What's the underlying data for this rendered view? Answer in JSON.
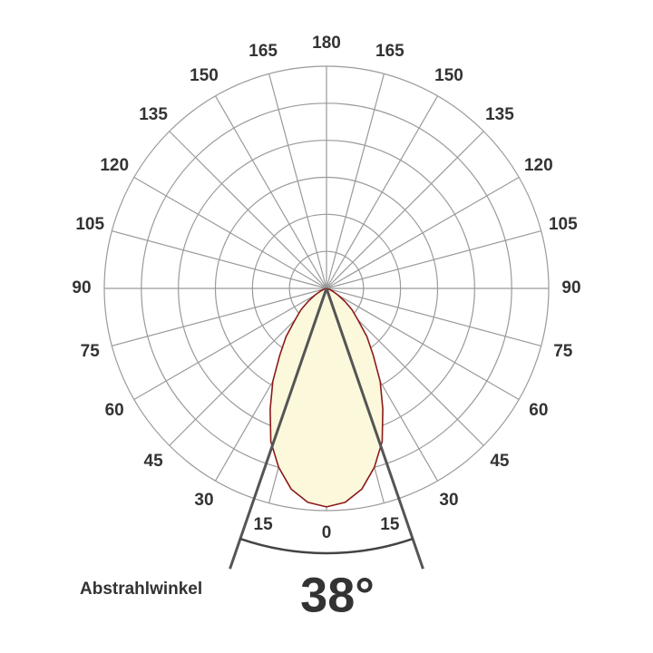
{
  "chart_data": {
    "type": "polar",
    "thetaticks": [
      0,
      15,
      30,
      45,
      60,
      75,
      90,
      105,
      120,
      135,
      150,
      165,
      180
    ],
    "rlim": [
      0,
      6
    ],
    "rticks": [
      1,
      2,
      3,
      4,
      5,
      6
    ],
    "theta": [
      0,
      5,
      10,
      15,
      20,
      25,
      30,
      35,
      40,
      45,
      50,
      55,
      60,
      65,
      70,
      75
    ],
    "values": [
      5.9,
      5.8,
      5.5,
      5.0,
      4.4,
      3.6,
      2.9,
      2.2,
      1.7,
      1.2,
      0.9,
      0.6,
      0.35,
      0.2,
      0.1,
      0
    ],
    "color": "#8b1a1a",
    "fill": "#fbf8dc",
    "beam_angle": {
      "value": 38,
      "label": "38°"
    },
    "beam_label": "Abstrahlwinkel"
  }
}
